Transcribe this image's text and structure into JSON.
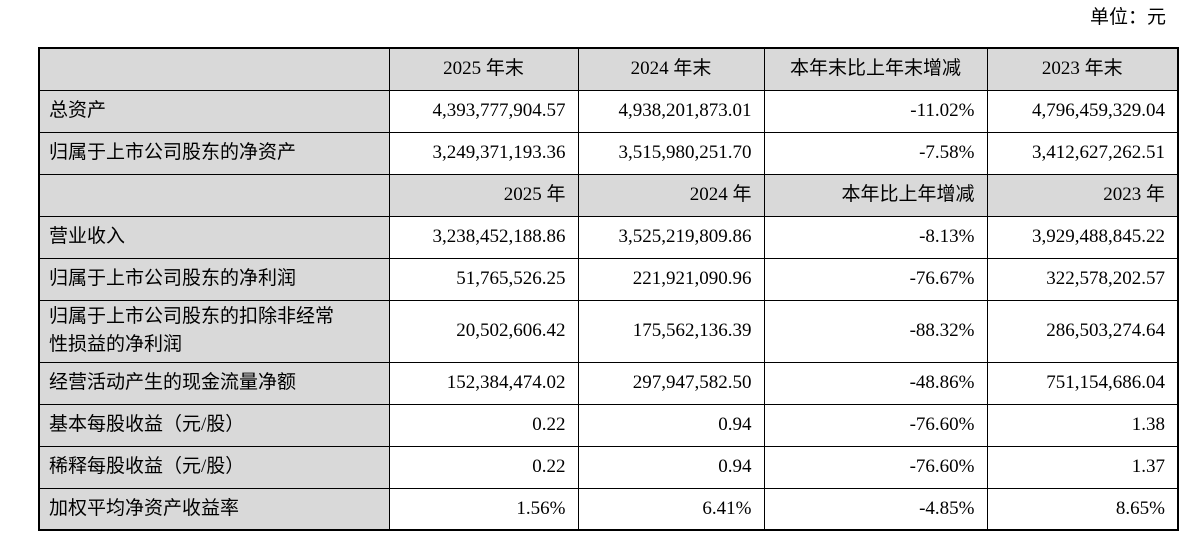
{
  "page": {
    "unit_label": "单位：元"
  },
  "table": {
    "sections": [
      {
        "header_cells": [
          "",
          "2025 年末",
          "2024 年末",
          "本年末比上年末增减",
          "2023 年末"
        ],
        "rows": [
          {
            "label": "总资产",
            "values": [
              "4,393,777,904.57",
              "4,938,201,873.01",
              "-11.02%",
              "4,796,459,329.04"
            ]
          },
          {
            "label": "归属于上市公司股东的净资产",
            "values": [
              "3,249,371,193.36",
              "3,515,980,251.70",
              "-7.58%",
              "3,412,627,262.51"
            ]
          }
        ]
      },
      {
        "header_cells": [
          "",
          "2025 年",
          "2024 年",
          "本年比上年增减",
          "2023 年"
        ],
        "rows": [
          {
            "label": "营业收入",
            "values": [
              "3,238,452,188.86",
              "3,525,219,809.86",
              "-8.13%",
              "3,929,488,845.22"
            ]
          },
          {
            "label": "归属于上市公司股东的净利润",
            "values": [
              "51,765,526.25",
              "221,921,090.96",
              "-76.67%",
              "322,578,202.57"
            ]
          },
          {
            "label": "归属于上市公司股东的扣除非经常性损益的净利润",
            "values": [
              "20,502,606.42",
              "175,562,136.39",
              "-88.32%",
              "286,503,274.64"
            ]
          },
          {
            "label": "经营活动产生的现金流量净额",
            "values": [
              "152,384,474.02",
              "297,947,582.50",
              "-48.86%",
              "751,154,686.04"
            ]
          },
          {
            "label": "基本每股收益（元/股）",
            "values": [
              "0.22",
              "0.94",
              "-76.60%",
              "1.38"
            ]
          },
          {
            "label": "稀释每股收益（元/股）",
            "values": [
              "0.22",
              "0.94",
              "-76.60%",
              "1.37"
            ]
          },
          {
            "label": "加权平均净资产收益率",
            "values": [
              "1.56%",
              "6.41%",
              "-4.85%",
              "8.65%"
            ]
          }
        ]
      }
    ]
  },
  "colors": {
    "page_bg": "#ffffff",
    "header_bg": "#d9d9d9",
    "label_bg": "#d9d9d9",
    "border": "#000000",
    "text": "#000000"
  }
}
